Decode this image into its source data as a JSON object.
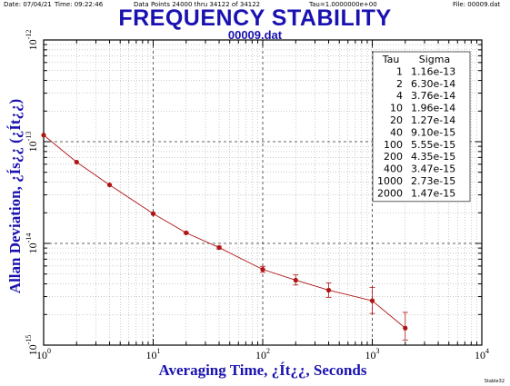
{
  "header": {
    "date": "Date: 07/04/21",
    "time": "Time: 09:22:46",
    "data_points": "Data Points 24000 thru 34122 of 34122",
    "tau": "Tau=1.0000000e+00",
    "file": "File: 00009.dat"
  },
  "signature": "Stable32",
  "colors": {
    "title": "#1a12b0",
    "series": "#b01414",
    "grid": "#9a9a9a",
    "axis": "#000000"
  },
  "chart_data": {
    "type": "line",
    "title": "FREQUENCY STABILITY",
    "subtitle": "00009.dat",
    "xlabel": "Averaging Time, ¿Ít¿¿, Seconds",
    "ylabel": "Allan Deviation, ¿Ís¿¿ (¿Ít¿¿)",
    "xscale": "log",
    "yscale": "log",
    "xlim": [
      1,
      10000
    ],
    "ylim": [
      1e-15,
      1e-12
    ],
    "x_tick_labels": [
      "10^0",
      "10^1",
      "10^2",
      "10^3",
      "10^4"
    ],
    "y_tick_labels": [
      "10^-15",
      "10^-14",
      "10^-13",
      "10^-12"
    ],
    "grid": true,
    "table": {
      "headers": [
        "Tau",
        "Sigma"
      ],
      "position": "top-right",
      "rows": [
        [
          "1",
          "1.16e-13"
        ],
        [
          "2",
          "6.30e-14"
        ],
        [
          "4",
          "3.76e-14"
        ],
        [
          "10",
          "1.96e-14"
        ],
        [
          "20",
          "1.27e-14"
        ],
        [
          "40",
          "9.10e-15"
        ],
        [
          "100",
          "5.55e-15"
        ],
        [
          "200",
          "4.35e-15"
        ],
        [
          "400",
          "3.47e-15"
        ],
        [
          "1000",
          "2.73e-15"
        ],
        [
          "2000",
          "1.47e-15"
        ]
      ]
    },
    "series": [
      {
        "x": [
          1,
          2,
          4,
          10,
          20,
          40,
          100,
          200,
          400,
          1000,
          2000
        ],
        "y": [
          1.16e-13,
          6.3e-14,
          3.76e-14,
          1.96e-14,
          1.27e-14,
          9.1e-15,
          5.55e-15,
          4.35e-15,
          3.47e-15,
          2.73e-15,
          1.47e-15
        ],
        "y_low": [
          1.16e-13,
          6.3e-14,
          3.76e-14,
          1.96e-14,
          1.25e-14,
          8.8e-15,
          5.2e-15,
          3.9e-15,
          2.95e-15,
          2.05e-15,
          1.12e-15
        ],
        "y_high": [
          1.16e-13,
          6.3e-14,
          3.76e-14,
          1.96e-14,
          1.29e-14,
          9.4e-15,
          5.95e-15,
          4.9e-15,
          4.1e-15,
          3.7e-15,
          2.1e-15
        ]
      }
    ]
  }
}
